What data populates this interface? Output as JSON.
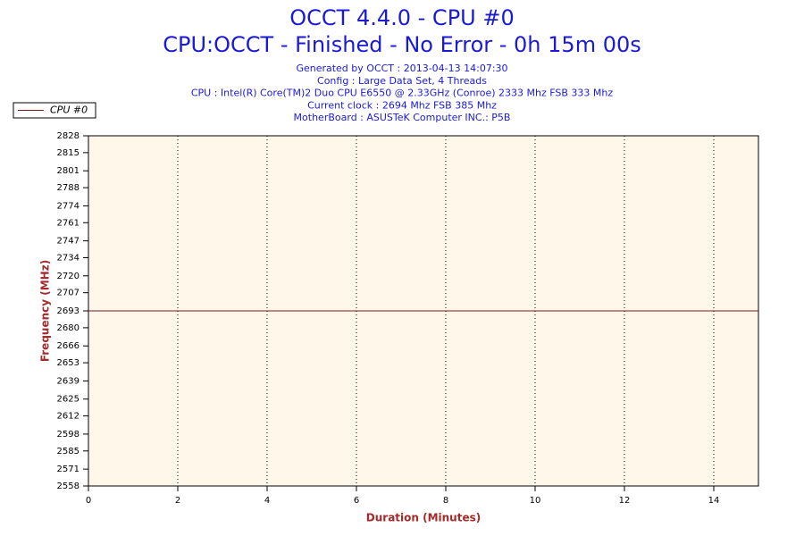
{
  "chart_data": {
    "type": "line",
    "title": "OCCT 4.4.0 - CPU #0",
    "subtitle": "CPU:OCCT - Finished - No Error - 0h 15m 00s",
    "info": [
      "Generated by OCCT : 2013-04-13 14:07:30",
      "Config : Large Data Set, 4 Threads",
      "CPU : Intel(R) Core(TM)2 Duo CPU E6550 @ 2.33GHz (Conroe) 2333 Mhz FSB 333 Mhz",
      "Current clock : 2694 Mhz FSB 385 Mhz",
      "MotherBoard : ASUSTeK Computer INC.: P5B"
    ],
    "x_label": "Duration (Minutes)",
    "y_label": "Frequency (MHz)",
    "x": [
      0,
      15
    ],
    "series": [
      {
        "name": "CPU #0",
        "color": "#7a1a1a",
        "values": [
          2693,
          2693
        ]
      }
    ],
    "xlim": [
      0,
      15
    ],
    "xticks": [
      0,
      2,
      4,
      6,
      8,
      10,
      12,
      14
    ],
    "ylim": [
      2558,
      2828
    ],
    "yticks": [
      2558,
      2571,
      2585,
      2598,
      2612,
      2625,
      2639,
      2653,
      2666,
      2680,
      2693,
      2707,
      2720,
      2734,
      2747,
      2761,
      2774,
      2788,
      2801,
      2815,
      2828
    ],
    "grid": true,
    "legend": "top-left"
  }
}
